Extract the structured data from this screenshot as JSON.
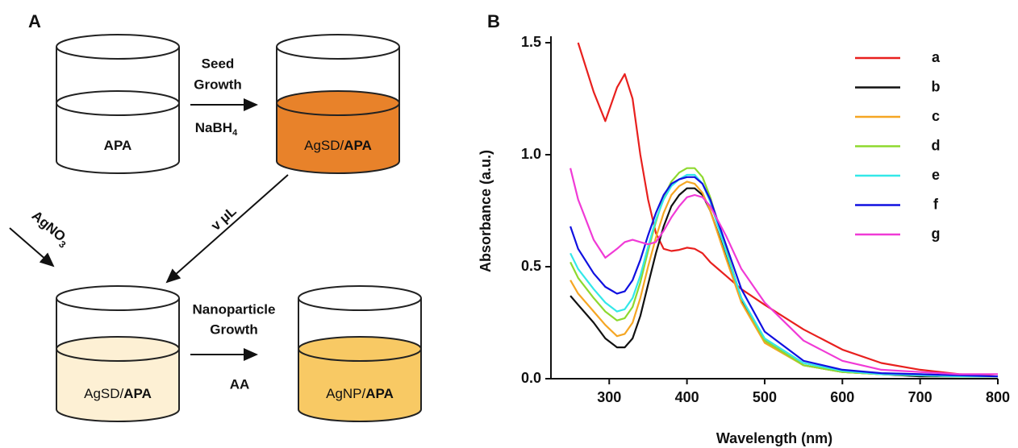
{
  "panel_a": {
    "label": "A",
    "beakers": [
      {
        "bold": "APA"
      },
      {
        "text": "AgSD/",
        "bold": "APA"
      },
      {
        "text": "AgSD/",
        "bold": "APA"
      },
      {
        "text": "AgNP/",
        "bold": "APA"
      }
    ],
    "step1": {
      "lines": [
        "Seed",
        "Growth"
      ],
      "reagent": "NaBH",
      "reagent_sub": "4"
    },
    "step2": {
      "label": "v μL"
    },
    "step3": {
      "reagent": "AgNO",
      "reagent_sub": "3"
    },
    "step4": {
      "lines": [
        "Nanoparticle",
        "Growth"
      ],
      "reagent": "AA"
    }
  },
  "chart_data": {
    "type": "line",
    "panel_label": "B",
    "xlabel": "Wavelength (nm)",
    "ylabel": "Absorbance (a.u.)",
    "x": [
      250,
      260,
      280,
      295,
      310,
      320,
      330,
      340,
      350,
      360,
      370,
      380,
      390,
      400,
      410,
      420,
      430,
      450,
      470,
      500,
      550,
      600,
      650,
      700,
      750,
      800
    ],
    "series": [
      {
        "name": "a",
        "color": "#e8201e",
        "values": [
          null,
          1.5,
          1.28,
          1.15,
          1.3,
          1.36,
          1.25,
          1.0,
          0.8,
          0.65,
          0.58,
          0.57,
          0.575,
          0.585,
          0.58,
          0.56,
          0.52,
          0.46,
          0.4,
          0.33,
          0.22,
          0.13,
          0.07,
          0.04,
          0.02,
          0.01
        ]
      },
      {
        "name": "b",
        "color": "#111111",
        "values": [
          0.37,
          0.33,
          0.25,
          0.18,
          0.14,
          0.14,
          0.18,
          0.28,
          0.42,
          0.56,
          0.68,
          0.77,
          0.82,
          0.85,
          0.85,
          0.82,
          0.75,
          0.55,
          0.35,
          0.17,
          0.06,
          0.03,
          0.02,
          0.01,
          0.01,
          0.01
        ]
      },
      {
        "name": "c",
        "color": "#f5a623",
        "values": [
          0.44,
          0.38,
          0.3,
          0.24,
          0.19,
          0.2,
          0.25,
          0.36,
          0.5,
          0.63,
          0.74,
          0.82,
          0.86,
          0.88,
          0.87,
          0.83,
          0.75,
          0.54,
          0.34,
          0.16,
          0.06,
          0.03,
          0.02,
          0.015,
          0.01,
          0.01
        ]
      },
      {
        "name": "d",
        "color": "#8ed92f",
        "values": [
          0.52,
          0.45,
          0.36,
          0.3,
          0.26,
          0.27,
          0.32,
          0.43,
          0.57,
          0.7,
          0.81,
          0.88,
          0.92,
          0.94,
          0.94,
          0.9,
          0.81,
          0.58,
          0.36,
          0.17,
          0.06,
          0.03,
          0.02,
          0.015,
          0.01,
          0.01
        ]
      },
      {
        "name": "e",
        "color": "#33e8e8",
        "values": [
          0.56,
          0.49,
          0.4,
          0.34,
          0.3,
          0.31,
          0.36,
          0.46,
          0.59,
          0.71,
          0.8,
          0.86,
          0.89,
          0.91,
          0.91,
          0.87,
          0.79,
          0.57,
          0.36,
          0.18,
          0.07,
          0.035,
          0.02,
          0.015,
          0.01,
          0.01
        ]
      },
      {
        "name": "f",
        "color": "#1010e0",
        "values": [
          0.68,
          0.58,
          0.47,
          0.41,
          0.38,
          0.39,
          0.44,
          0.53,
          0.64,
          0.74,
          0.82,
          0.87,
          0.89,
          0.9,
          0.9,
          0.87,
          0.8,
          0.6,
          0.4,
          0.21,
          0.08,
          0.04,
          0.025,
          0.02,
          0.015,
          0.01
        ]
      },
      {
        "name": "g",
        "color": "#f03ad6",
        "values": [
          0.94,
          0.8,
          0.62,
          0.54,
          0.58,
          0.61,
          0.62,
          0.61,
          0.6,
          0.61,
          0.66,
          0.72,
          0.77,
          0.81,
          0.82,
          0.81,
          0.77,
          0.64,
          0.49,
          0.34,
          0.17,
          0.08,
          0.04,
          0.03,
          0.02,
          0.02
        ]
      }
    ],
    "xlim": [
      225,
      800
    ],
    "ylim": [
      0,
      1.5
    ],
    "xticks": [
      300,
      400,
      500,
      600,
      700,
      800
    ],
    "yticks": [
      {
        "value": 0,
        "label": "0.0"
      },
      {
        "value": 0.5,
        "label": "0.5"
      },
      {
        "value": 1,
        "label": "1.0"
      },
      1.5
    ],
    "legend": "upper right"
  }
}
